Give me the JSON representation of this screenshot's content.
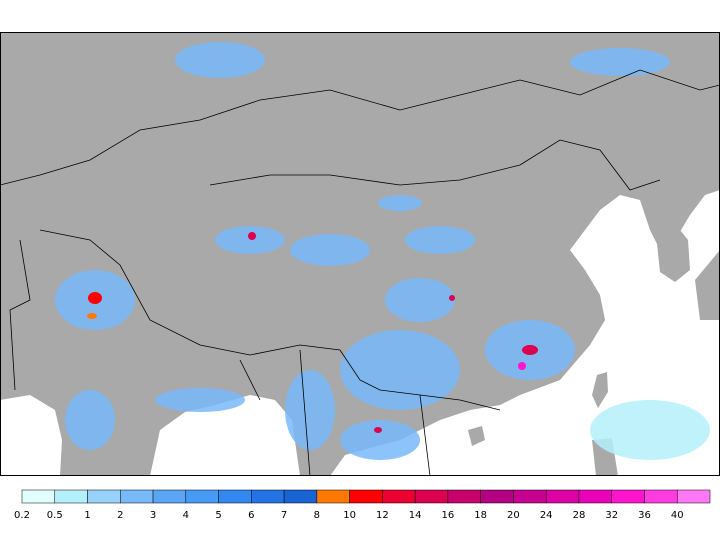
{
  "legend": {
    "labels": [
      "0.2",
      "0.5",
      "1",
      "2",
      "3",
      "4",
      "5",
      "6",
      "7",
      "8",
      "10",
      "12",
      "14",
      "16",
      "18",
      "20",
      "24",
      "28",
      "32",
      "36",
      "40"
    ],
    "colors": [
      "#e1ffff",
      "#b4f0fa",
      "#96d2fa",
      "#78b9fa",
      "#5aa5f5",
      "#469bf5",
      "#3287f0",
      "#2373e6",
      "#1964d2",
      "#ff7800",
      "#ff0000",
      "#eb0032",
      "#dc0050",
      "#c8006e",
      "#b40082",
      "#c80091",
      "#dc00a5",
      "#eb00b9",
      "#ff14cd",
      "#ff3ce1",
      "#ff78f5"
    ]
  }
}
